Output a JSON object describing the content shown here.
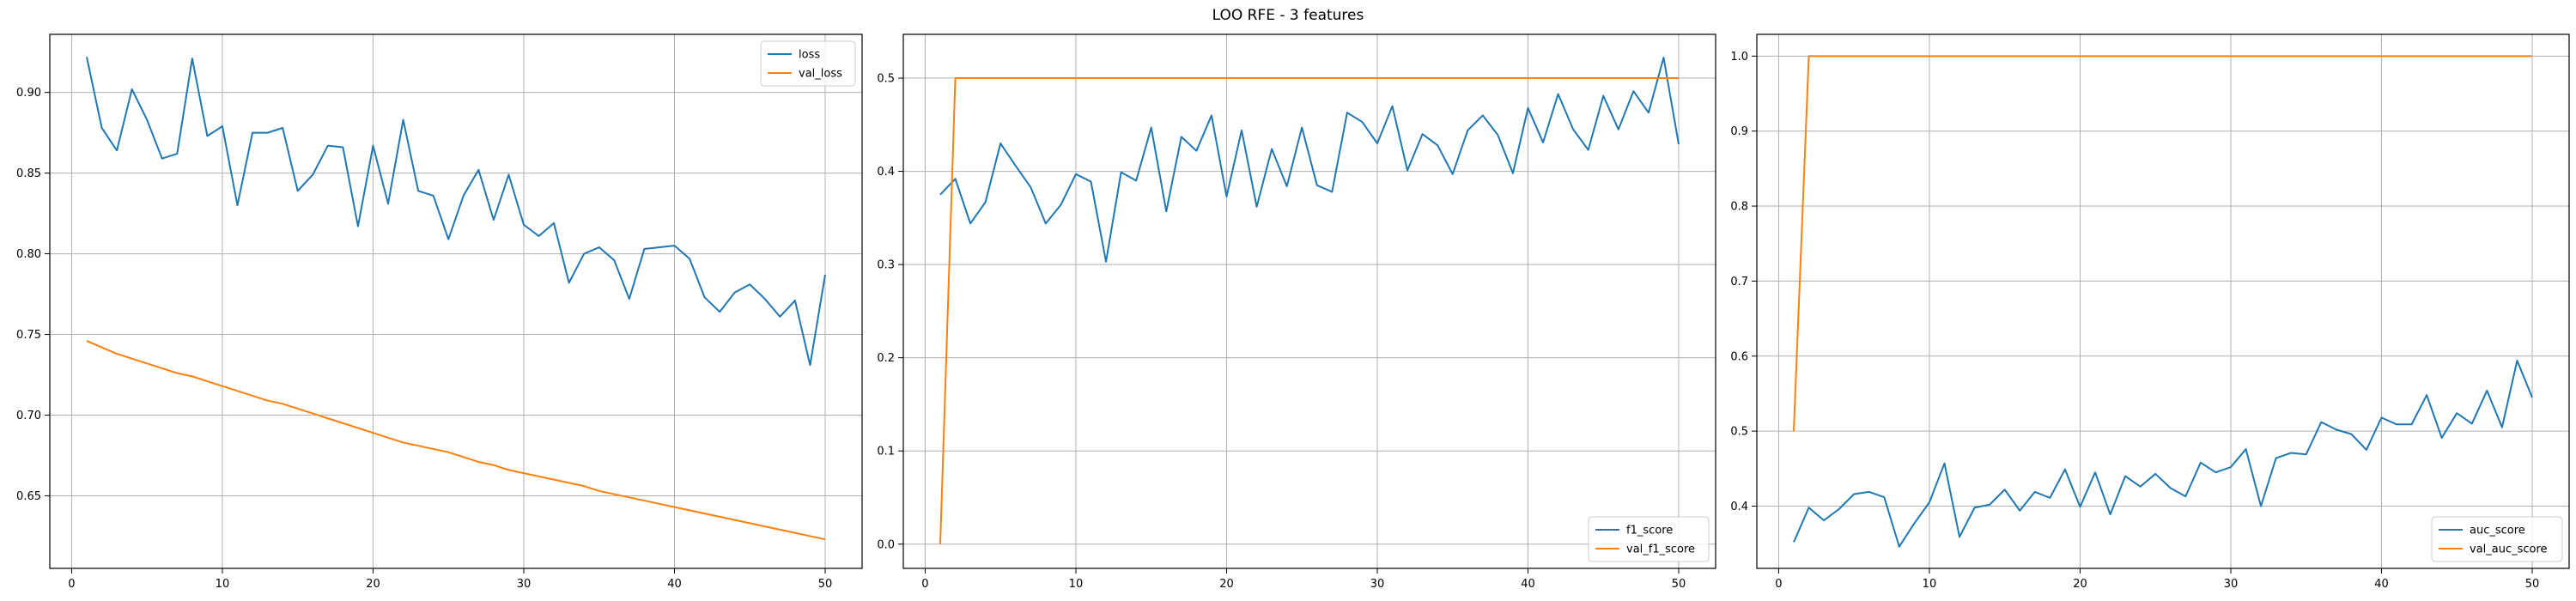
{
  "figure": {
    "title": "LOO RFE - 3 features"
  },
  "chart_data": [
    {
      "type": "line",
      "title": "",
      "xlabel": "",
      "ylabel": "",
      "xlim": [
        -1.45,
        52.45
      ],
      "ylim": [
        0.605,
        0.936
      ],
      "xticks": [
        0,
        10,
        20,
        30,
        40,
        50
      ],
      "yticks": [
        0.65,
        0.7,
        0.75,
        0.8,
        0.85,
        0.9
      ],
      "ytick_labels": [
        "0.65",
        "0.70",
        "0.75",
        "0.80",
        "0.85",
        "0.90"
      ],
      "grid": true,
      "legend_position": "upper-right",
      "x": [
        1,
        2,
        3,
        4,
        5,
        6,
        7,
        8,
        9,
        10,
        11,
        12,
        13,
        14,
        15,
        16,
        17,
        18,
        19,
        20,
        21,
        22,
        23,
        24,
        25,
        26,
        27,
        28,
        29,
        30,
        31,
        32,
        33,
        34,
        35,
        36,
        37,
        38,
        39,
        40,
        41,
        42,
        43,
        44,
        45,
        46,
        47,
        48,
        49,
        50
      ],
      "series": [
        {
          "name": "loss",
          "color": "#1f77b4",
          "values": [
            0.922,
            0.878,
            0.864,
            0.902,
            0.883,
            0.859,
            0.862,
            0.921,
            0.873,
            0.879,
            0.83,
            0.875,
            0.875,
            0.878,
            0.839,
            0.849,
            0.867,
            0.866,
            0.817,
            0.867,
            0.831,
            0.883,
            0.839,
            0.836,
            0.809,
            0.836,
            0.852,
            0.821,
            0.849,
            0.818,
            0.811,
            0.819,
            0.782,
            0.8,
            0.804,
            0.796,
            0.772,
            0.803,
            0.804,
            0.805,
            0.797,
            0.773,
            0.764,
            0.776,
            0.781,
            0.772,
            0.761,
            0.771,
            0.731,
            0.787
          ]
        },
        {
          "name": "val_loss",
          "color": "#ff7f0e",
          "values": [
            0.746,
            0.742,
            0.738,
            0.735,
            0.732,
            0.729,
            0.726,
            0.724,
            0.721,
            0.718,
            0.715,
            0.712,
            0.709,
            0.707,
            0.704,
            0.701,
            0.698,
            0.695,
            0.692,
            0.689,
            0.686,
            0.683,
            0.681,
            0.679,
            0.677,
            0.674,
            0.671,
            0.669,
            0.666,
            0.664,
            0.662,
            0.66,
            0.658,
            0.656,
            0.653,
            0.651,
            0.649,
            0.647,
            0.645,
            0.643,
            0.641,
            0.639,
            0.637,
            0.635,
            0.633,
            0.631,
            0.629,
            0.627,
            0.625,
            0.623
          ]
        }
      ]
    },
    {
      "type": "line",
      "title": "",
      "xlabel": "",
      "ylabel": "",
      "xlim": [
        -1.45,
        52.45
      ],
      "ylim": [
        -0.026,
        0.547
      ],
      "xticks": [
        0,
        10,
        20,
        30,
        40,
        50
      ],
      "yticks": [
        0.0,
        0.1,
        0.2,
        0.3,
        0.4,
        0.5
      ],
      "ytick_labels": [
        "0.0",
        "0.1",
        "0.2",
        "0.3",
        "0.4",
        "0.5"
      ],
      "grid": true,
      "legend_position": "lower-right",
      "x": [
        1,
        2,
        3,
        4,
        5,
        6,
        7,
        8,
        9,
        10,
        11,
        12,
        13,
        14,
        15,
        16,
        17,
        18,
        19,
        20,
        21,
        22,
        23,
        24,
        25,
        26,
        27,
        28,
        29,
        30,
        31,
        32,
        33,
        34,
        35,
        36,
        37,
        38,
        39,
        40,
        41,
        42,
        43,
        44,
        45,
        46,
        47,
        48,
        49,
        50
      ],
      "series": [
        {
          "name": "f1_score",
          "color": "#1f77b4",
          "values": [
            0.375,
            0.392,
            0.344,
            0.367,
            0.43,
            0.406,
            0.383,
            0.344,
            0.364,
            0.397,
            0.389,
            0.303,
            0.399,
            0.39,
            0.447,
            0.357,
            0.437,
            0.422,
            0.46,
            0.373,
            0.444,
            0.362,
            0.424,
            0.384,
            0.447,
            0.385,
            0.378,
            0.463,
            0.453,
            0.43,
            0.47,
            0.401,
            0.44,
            0.428,
            0.397,
            0.444,
            0.46,
            0.439,
            0.398,
            0.468,
            0.431,
            0.483,
            0.445,
            0.423,
            0.481,
            0.445,
            0.486,
            0.463,
            0.522,
            0.429
          ]
        },
        {
          "name": "val_f1_score",
          "color": "#ff7f0e",
          "values": [
            0.0,
            0.5,
            0.5,
            0.5,
            0.5,
            0.5,
            0.5,
            0.5,
            0.5,
            0.5,
            0.5,
            0.5,
            0.5,
            0.5,
            0.5,
            0.5,
            0.5,
            0.5,
            0.5,
            0.5,
            0.5,
            0.5,
            0.5,
            0.5,
            0.5,
            0.5,
            0.5,
            0.5,
            0.5,
            0.5,
            0.5,
            0.5,
            0.5,
            0.5,
            0.5,
            0.5,
            0.5,
            0.5,
            0.5,
            0.5,
            0.5,
            0.5,
            0.5,
            0.5,
            0.5,
            0.5,
            0.5,
            0.5,
            0.5,
            0.5
          ]
        }
      ]
    },
    {
      "type": "line",
      "title": "",
      "xlabel": "",
      "ylabel": "",
      "xlim": [
        -1.45,
        52.45
      ],
      "ylim": [
        0.317,
        1.029
      ],
      "xticks": [
        0,
        10,
        20,
        30,
        40,
        50
      ],
      "yticks": [
        0.4,
        0.5,
        0.6,
        0.7,
        0.8,
        0.9,
        1.0
      ],
      "ytick_labels": [
        "0.4",
        "0.5",
        "0.6",
        "0.7",
        "0.8",
        "0.9",
        "1.0"
      ],
      "grid": true,
      "legend_position": "lower-right",
      "x": [
        1,
        2,
        3,
        4,
        5,
        6,
        7,
        8,
        9,
        10,
        11,
        12,
        13,
        14,
        15,
        16,
        17,
        18,
        19,
        20,
        21,
        22,
        23,
        24,
        25,
        26,
        27,
        28,
        29,
        30,
        31,
        32,
        33,
        34,
        35,
        36,
        37,
        38,
        39,
        40,
        41,
        42,
        43,
        44,
        45,
        46,
        47,
        48,
        49,
        50
      ],
      "series": [
        {
          "name": "auc_score",
          "color": "#1f77b4",
          "values": [
            0.352,
            0.398,
            0.381,
            0.396,
            0.416,
            0.419,
            0.412,
            0.346,
            0.377,
            0.405,
            0.457,
            0.359,
            0.398,
            0.402,
            0.422,
            0.394,
            0.419,
            0.411,
            0.449,
            0.399,
            0.445,
            0.389,
            0.44,
            0.426,
            0.443,
            0.424,
            0.413,
            0.458,
            0.445,
            0.452,
            0.476,
            0.4,
            0.464,
            0.471,
            0.469,
            0.512,
            0.502,
            0.496,
            0.475,
            0.518,
            0.509,
            0.509,
            0.548,
            0.491,
            0.524,
            0.51,
            0.554,
            0.505,
            0.594,
            0.545
          ]
        },
        {
          "name": "val_auc_score",
          "color": "#ff7f0e",
          "values": [
            0.5,
            1.0,
            1.0,
            1.0,
            1.0,
            1.0,
            1.0,
            1.0,
            1.0,
            1.0,
            1.0,
            1.0,
            1.0,
            1.0,
            1.0,
            1.0,
            1.0,
            1.0,
            1.0,
            1.0,
            1.0,
            1.0,
            1.0,
            1.0,
            1.0,
            1.0,
            1.0,
            1.0,
            1.0,
            1.0,
            1.0,
            1.0,
            1.0,
            1.0,
            1.0,
            1.0,
            1.0,
            1.0,
            1.0,
            1.0,
            1.0,
            1.0,
            1.0,
            1.0,
            1.0,
            1.0,
            1.0,
            1.0,
            1.0,
            1.0
          ]
        }
      ]
    }
  ]
}
